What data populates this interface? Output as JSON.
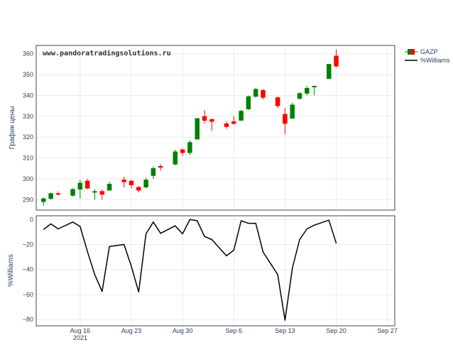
{
  "chart_data": {
    "type": "candlestick",
    "watermark": "www.pandoratradingsolutions.ru",
    "colors": {
      "up": "#008000",
      "down": "#ff0000",
      "line": "#000000",
      "grid": "#ebebeb",
      "axis": "#2a3f5f"
    },
    "x_ticks": [
      {
        "label": "Aug 16",
        "sublabel": "2021",
        "date": "2021-08-16"
      },
      {
        "label": "Aug 23",
        "sublabel": "",
        "date": "2021-08-23"
      },
      {
        "label": "Aug 30",
        "sublabel": "",
        "date": "2021-08-30"
      },
      {
        "label": "Sep 6",
        "sublabel": "",
        "date": "2021-09-06"
      },
      {
        "label": "Sep 13",
        "sublabel": "",
        "date": "2021-09-13"
      },
      {
        "label": "Sep 20",
        "sublabel": "",
        "date": "2021-09-20"
      },
      {
        "label": "Sep 27",
        "sublabel": "",
        "date": "2021-09-27"
      }
    ],
    "x_range": [
      "2021-08-10",
      "2021-09-28"
    ],
    "legend": {
      "placement": "top-right",
      "items": [
        {
          "name": "GAZP",
          "kind": "candle"
        },
        {
          "name": "%Williams",
          "kind": "line"
        }
      ]
    },
    "price_panel": {
      "ylabel": "График цены",
      "ylim": [
        285,
        364
      ],
      "yticks": [
        290,
        300,
        310,
        320,
        330,
        340,
        350,
        360
      ],
      "series_name": "GAZP",
      "candles": [
        {
          "date": "2021-08-11",
          "open": 289,
          "high": 291,
          "low": 287,
          "close": 290.5
        },
        {
          "date": "2021-08-12",
          "open": 290.5,
          "high": 293.5,
          "low": 290,
          "close": 293
        },
        {
          "date": "2021-08-13",
          "open": 293,
          "high": 294,
          "low": 292,
          "close": 292.5
        },
        {
          "date": "2021-08-15",
          "open": 292,
          "high": 295.5,
          "low": 291.5,
          "close": 295
        },
        {
          "date": "2021-08-16",
          "open": 295,
          "high": 299.5,
          "low": 290.5,
          "close": 298
        },
        {
          "date": "2021-08-17",
          "open": 299,
          "high": 300,
          "low": 295,
          "close": 295.5
        },
        {
          "date": "2021-08-18",
          "open": 293.5,
          "high": 295,
          "low": 290,
          "close": 294
        },
        {
          "date": "2021-08-19",
          "open": 294,
          "high": 295,
          "low": 290,
          "close": 292.5
        },
        {
          "date": "2021-08-20",
          "open": 294.5,
          "high": 298.5,
          "low": 294.5,
          "close": 297.5
        },
        {
          "date": "2021-08-22",
          "open": 299.5,
          "high": 301,
          "low": 296,
          "close": 298.5
        },
        {
          "date": "2021-08-23",
          "open": 299,
          "high": 299.5,
          "low": 295.5,
          "close": 297
        },
        {
          "date": "2021-08-24",
          "open": 296,
          "high": 296.5,
          "low": 293.5,
          "close": 294.5
        },
        {
          "date": "2021-08-25",
          "open": 296,
          "high": 300.5,
          "low": 295.5,
          "close": 299.5
        },
        {
          "date": "2021-08-26",
          "open": 301.5,
          "high": 306,
          "low": 300,
          "close": 305
        },
        {
          "date": "2021-08-27",
          "open": 306,
          "high": 307,
          "low": 304,
          "close": 305.5
        },
        {
          "date": "2021-08-29",
          "open": 307,
          "high": 314,
          "low": 306.5,
          "close": 313
        },
        {
          "date": "2021-08-30",
          "open": 314,
          "high": 314.5,
          "low": 311,
          "close": 312.5
        },
        {
          "date": "2021-08-31",
          "open": 312.5,
          "high": 318.5,
          "low": 311.5,
          "close": 317.5
        },
        {
          "date": "2021-09-01",
          "open": 319,
          "high": 329,
          "low": 319,
          "close": 329
        },
        {
          "date": "2021-09-02",
          "open": 330,
          "high": 333,
          "low": 326.5,
          "close": 328
        },
        {
          "date": "2021-09-03",
          "open": 328.5,
          "high": 329,
          "low": 323,
          "close": 327.5
        },
        {
          "date": "2021-09-05",
          "open": 326.5,
          "high": 327.5,
          "low": 324,
          "close": 325
        },
        {
          "date": "2021-09-06",
          "open": 327.5,
          "high": 330,
          "low": 326,
          "close": 326.5
        },
        {
          "date": "2021-09-07",
          "open": 328,
          "high": 333,
          "low": 328,
          "close": 332.5
        },
        {
          "date": "2021-09-08",
          "open": 333.5,
          "high": 340,
          "low": 333,
          "close": 339.5
        },
        {
          "date": "2021-09-09",
          "open": 339.5,
          "high": 343.5,
          "low": 339,
          "close": 343
        },
        {
          "date": "2021-09-10",
          "open": 342.5,
          "high": 343,
          "low": 338,
          "close": 339
        },
        {
          "date": "2021-09-12",
          "open": 339,
          "high": 339.5,
          "low": 334,
          "close": 335
        },
        {
          "date": "2021-09-13",
          "open": 331,
          "high": 334,
          "low": 321.5,
          "close": 326.5
        },
        {
          "date": "2021-09-14",
          "open": 329,
          "high": 336.5,
          "low": 329,
          "close": 335.5
        },
        {
          "date": "2021-09-15",
          "open": 338.5,
          "high": 341.5,
          "low": 338,
          "close": 341
        },
        {
          "date": "2021-09-16",
          "open": 341,
          "high": 344.5,
          "low": 340,
          "close": 343.5
        },
        {
          "date": "2021-09-17",
          "open": 344,
          "high": 344.5,
          "low": 340,
          "close": 344.5
        },
        {
          "date": "2021-09-19",
          "open": 348,
          "high": 355,
          "low": 348,
          "close": 355
        },
        {
          "date": "2021-09-20",
          "open": 359,
          "high": 362,
          "low": 353.5,
          "close": 354
        }
      ]
    },
    "williams_panel": {
      "ylabel": "%Williams",
      "ylim": [
        -85,
        3
      ],
      "yticks": [
        0,
        -20,
        -40,
        -60,
        -80
      ],
      "series_name": "%Williams",
      "points": [
        {
          "date": "2021-08-11",
          "value": -8
        },
        {
          "date": "2021-08-12",
          "value": -3.5
        },
        {
          "date": "2021-08-13",
          "value": -7.5
        },
        {
          "date": "2021-08-15",
          "value": -2
        },
        {
          "date": "2021-08-16",
          "value": -5.5
        },
        {
          "date": "2021-08-17",
          "value": -25.5
        },
        {
          "date": "2021-08-18",
          "value": -44
        },
        {
          "date": "2021-08-19",
          "value": -57.5
        },
        {
          "date": "2021-08-20",
          "value": -21.5
        },
        {
          "date": "2021-08-22",
          "value": -20
        },
        {
          "date": "2021-08-23",
          "value": -37.5
        },
        {
          "date": "2021-08-24",
          "value": -58
        },
        {
          "date": "2021-08-25",
          "value": -11.5
        },
        {
          "date": "2021-08-26",
          "value": -2
        },
        {
          "date": "2021-08-27",
          "value": -11
        },
        {
          "date": "2021-08-29",
          "value": -5
        },
        {
          "date": "2021-08-30",
          "value": -11.5
        },
        {
          "date": "2021-08-31",
          "value": 0
        },
        {
          "date": "2021-09-01",
          "value": -1
        },
        {
          "date": "2021-09-02",
          "value": -13.5
        },
        {
          "date": "2021-09-03",
          "value": -16
        },
        {
          "date": "2021-09-05",
          "value": -29
        },
        {
          "date": "2021-09-06",
          "value": -24.5
        },
        {
          "date": "2021-09-07",
          "value": -1
        },
        {
          "date": "2021-09-08",
          "value": -3
        },
        {
          "date": "2021-09-09",
          "value": -3
        },
        {
          "date": "2021-09-10",
          "value": -26
        },
        {
          "date": "2021-09-12",
          "value": -44
        },
        {
          "date": "2021-09-13",
          "value": -80.5
        },
        {
          "date": "2021-09-14",
          "value": -39
        },
        {
          "date": "2021-09-15",
          "value": -16
        },
        {
          "date": "2021-09-16",
          "value": -7.5
        },
        {
          "date": "2021-09-17",
          "value": -4.5
        },
        {
          "date": "2021-09-19",
          "value": -0.5
        },
        {
          "date": "2021-09-20",
          "value": -19
        }
      ]
    }
  }
}
